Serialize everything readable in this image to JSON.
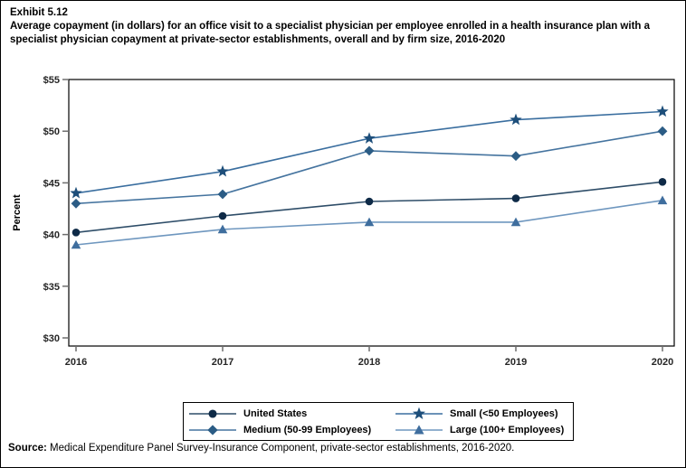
{
  "exhibit": {
    "label": "Exhibit 5.12",
    "title": "Average copayment (in dollars) for an office visit to a specialist physician per employee enrolled in a health insurance plan with a specialist physician copayment at private-sector establishments, overall and by firm size, 2016-2020"
  },
  "chart_data": {
    "type": "line",
    "title": "",
    "xlabel": "",
    "ylabel": "Percent",
    "x": [
      2016,
      2017,
      2018,
      2019,
      2020
    ],
    "ylim": [
      30,
      55
    ],
    "yticks": [
      55,
      50,
      45,
      40,
      35,
      30
    ],
    "ytick_prefix": "$",
    "grid": false,
    "legend_position": "bottom",
    "series": [
      {
        "name": "United States",
        "marker": "circle",
        "values": [
          40.2,
          41.8,
          43.2,
          43.5,
          45.1
        ],
        "line_color": "#2e4d68",
        "marker_color": "#0e2a47"
      },
      {
        "name": "Small (<50 Employees)",
        "marker": "star",
        "values": [
          44.0,
          46.1,
          49.3,
          51.1,
          51.9
        ],
        "line_color": "#3a6e9f",
        "marker_color": "#1d4e7a"
      },
      {
        "name": "Medium (50-99 Employees)",
        "marker": "diamond",
        "values": [
          43.0,
          43.9,
          48.1,
          47.6,
          50.0
        ],
        "line_color": "#45749f",
        "marker_color": "#2b5c85"
      },
      {
        "name": "Large (100+ Employees)",
        "marker": "triangle",
        "values": [
          39.0,
          40.5,
          41.2,
          41.2,
          43.3
        ],
        "line_color": "#6f97bf",
        "marker_color": "#3f6e9e"
      }
    ]
  },
  "legend": {
    "order": [
      "United States",
      "Small (<50 Employees)",
      "Medium (50-99 Employees)",
      "Large (100+ Employees)"
    ]
  },
  "source": {
    "label": "Source:",
    "text": " Medical Expenditure Panel Survey-Insurance Component, private-sector establishments, 2016-2020."
  },
  "colors": {
    "axis_frame": "#000000",
    "tick": "#6e6e6e",
    "background": "#ffffff"
  }
}
